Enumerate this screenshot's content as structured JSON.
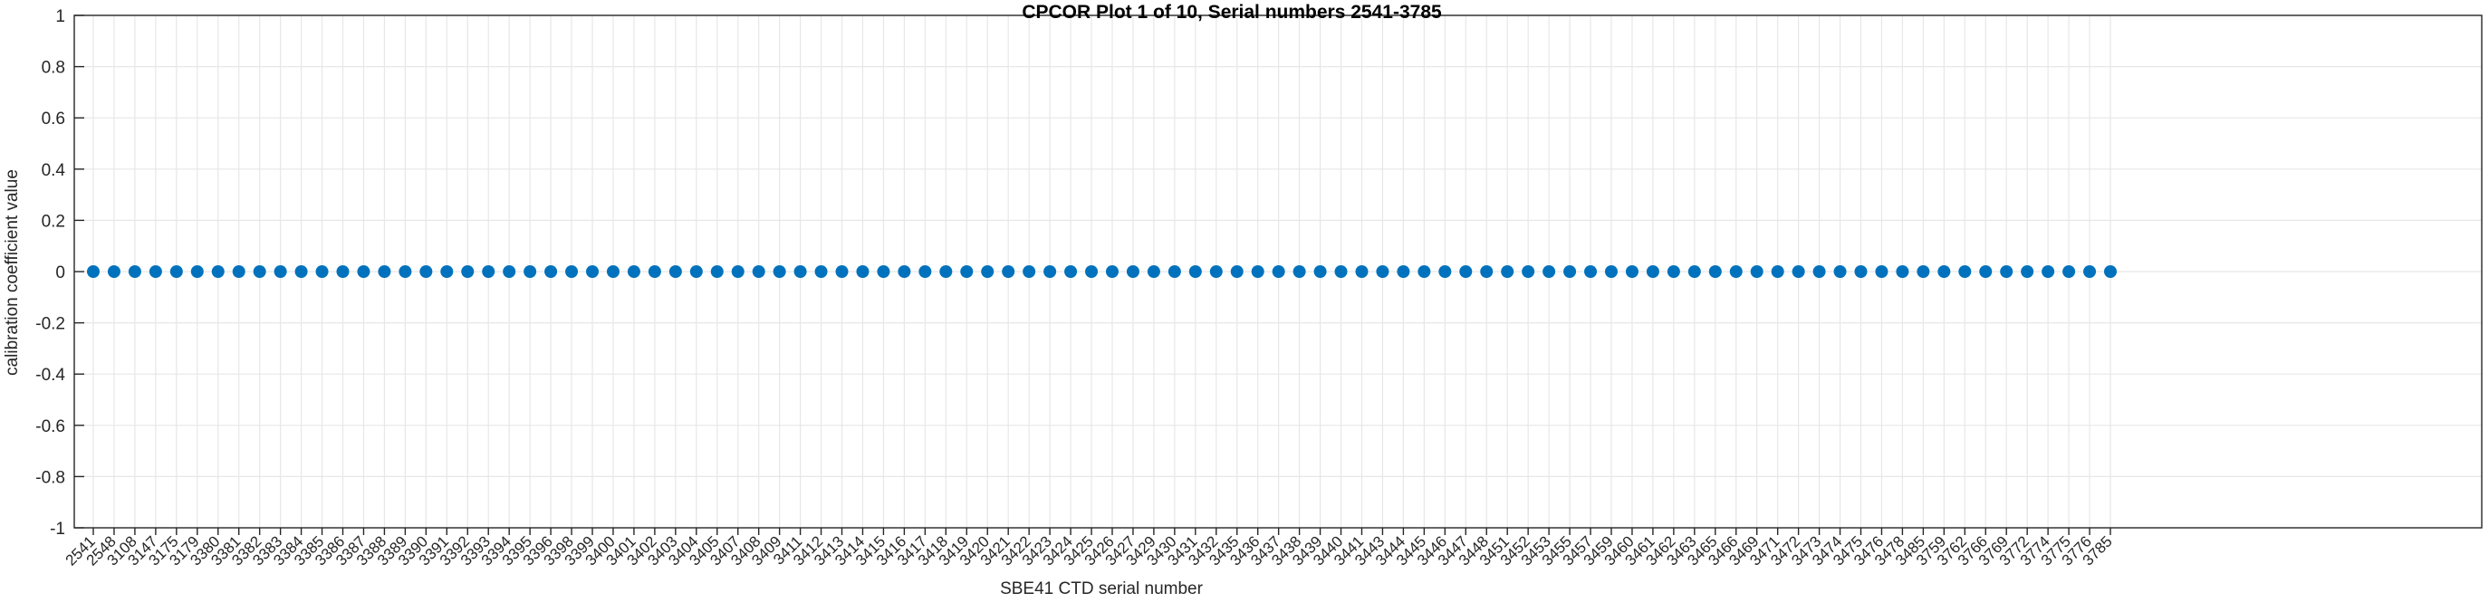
{
  "chart_data": {
    "type": "scatter",
    "title": "CPCOR Plot 1 of 10, Serial numbers 2541-3785",
    "xlabel": "SBE41 CTD serial number",
    "ylabel": "calibration coefficient value",
    "grid": true,
    "legend": "none",
    "ylim": [
      -1,
      1
    ],
    "y_ticks": [
      1,
      0.8,
      0.6,
      0.4,
      0.2,
      0,
      -0.2,
      -0.4,
      -0.6,
      -0.8,
      -1
    ],
    "y_tick_labels": [
      "1",
      "0.8",
      "0.6",
      "0.4",
      "0.2",
      "0",
      "-0.2",
      "-0.4",
      "-0.6",
      "-0.8",
      "-1"
    ],
    "x_categories": [
      "2541",
      "2548",
      "3108",
      "3147",
      "3175",
      "3179",
      "3380",
      "3381",
      "3382",
      "3383",
      "3384",
      "3385",
      "3386",
      "3387",
      "3388",
      "3389",
      "3390",
      "3391",
      "3392",
      "3393",
      "3394",
      "3395",
      "3396",
      "3398",
      "3399",
      "3400",
      "3401",
      "3402",
      "3403",
      "3404",
      "3405",
      "3407",
      "3408",
      "3409",
      "3411",
      "3412",
      "3413",
      "3414",
      "3415",
      "3416",
      "3417",
      "3418",
      "3419",
      "3420",
      "3421",
      "3422",
      "3423",
      "3424",
      "3425",
      "3426",
      "3427",
      "3429",
      "3430",
      "3431",
      "3432",
      "3435",
      "3436",
      "3437",
      "3438",
      "3439",
      "3440",
      "3441",
      "3443",
      "3444",
      "3445",
      "3446",
      "3447",
      "3448",
      "3451",
      "3452",
      "3453",
      "3455",
      "3457",
      "3459",
      "3460",
      "3461",
      "3462",
      "3463",
      "3465",
      "3466",
      "3469",
      "3471",
      "3472",
      "3473",
      "3474",
      "3475",
      "3476",
      "3478",
      "3485",
      "3759",
      "3762",
      "3766",
      "3769",
      "3772",
      "3774",
      "3775",
      "3776",
      "3785"
    ],
    "series": [
      {
        "name": "calibration coefficient",
        "values": [
          0,
          0,
          0,
          0,
          0,
          0,
          0,
          0,
          0,
          0,
          0,
          0,
          0,
          0,
          0,
          0,
          0,
          0,
          0,
          0,
          0,
          0,
          0,
          0,
          0,
          0,
          0,
          0,
          0,
          0,
          0,
          0,
          0,
          0,
          0,
          0,
          0,
          0,
          0,
          0,
          0,
          0,
          0,
          0,
          0,
          0,
          0,
          0,
          0,
          0,
          0,
          0,
          0,
          0,
          0,
          0,
          0,
          0,
          0,
          0,
          0,
          0,
          0,
          0,
          0,
          0,
          0,
          0,
          0,
          0,
          0,
          0,
          0,
          0,
          0,
          0,
          0,
          0,
          0,
          0,
          0,
          0,
          0,
          0,
          0,
          0,
          0,
          0,
          0,
          0,
          0,
          0,
          0,
          0,
          0,
          0,
          0,
          0
        ]
      }
    ],
    "marker": {
      "shape": "circle",
      "color": "#0072bd",
      "radius": 7
    },
    "colors": {
      "background": "#ffffff",
      "grid": "#e7e7e7",
      "axis": "#262626",
      "tick_text": "#262626",
      "title_text": "#000000"
    }
  }
}
